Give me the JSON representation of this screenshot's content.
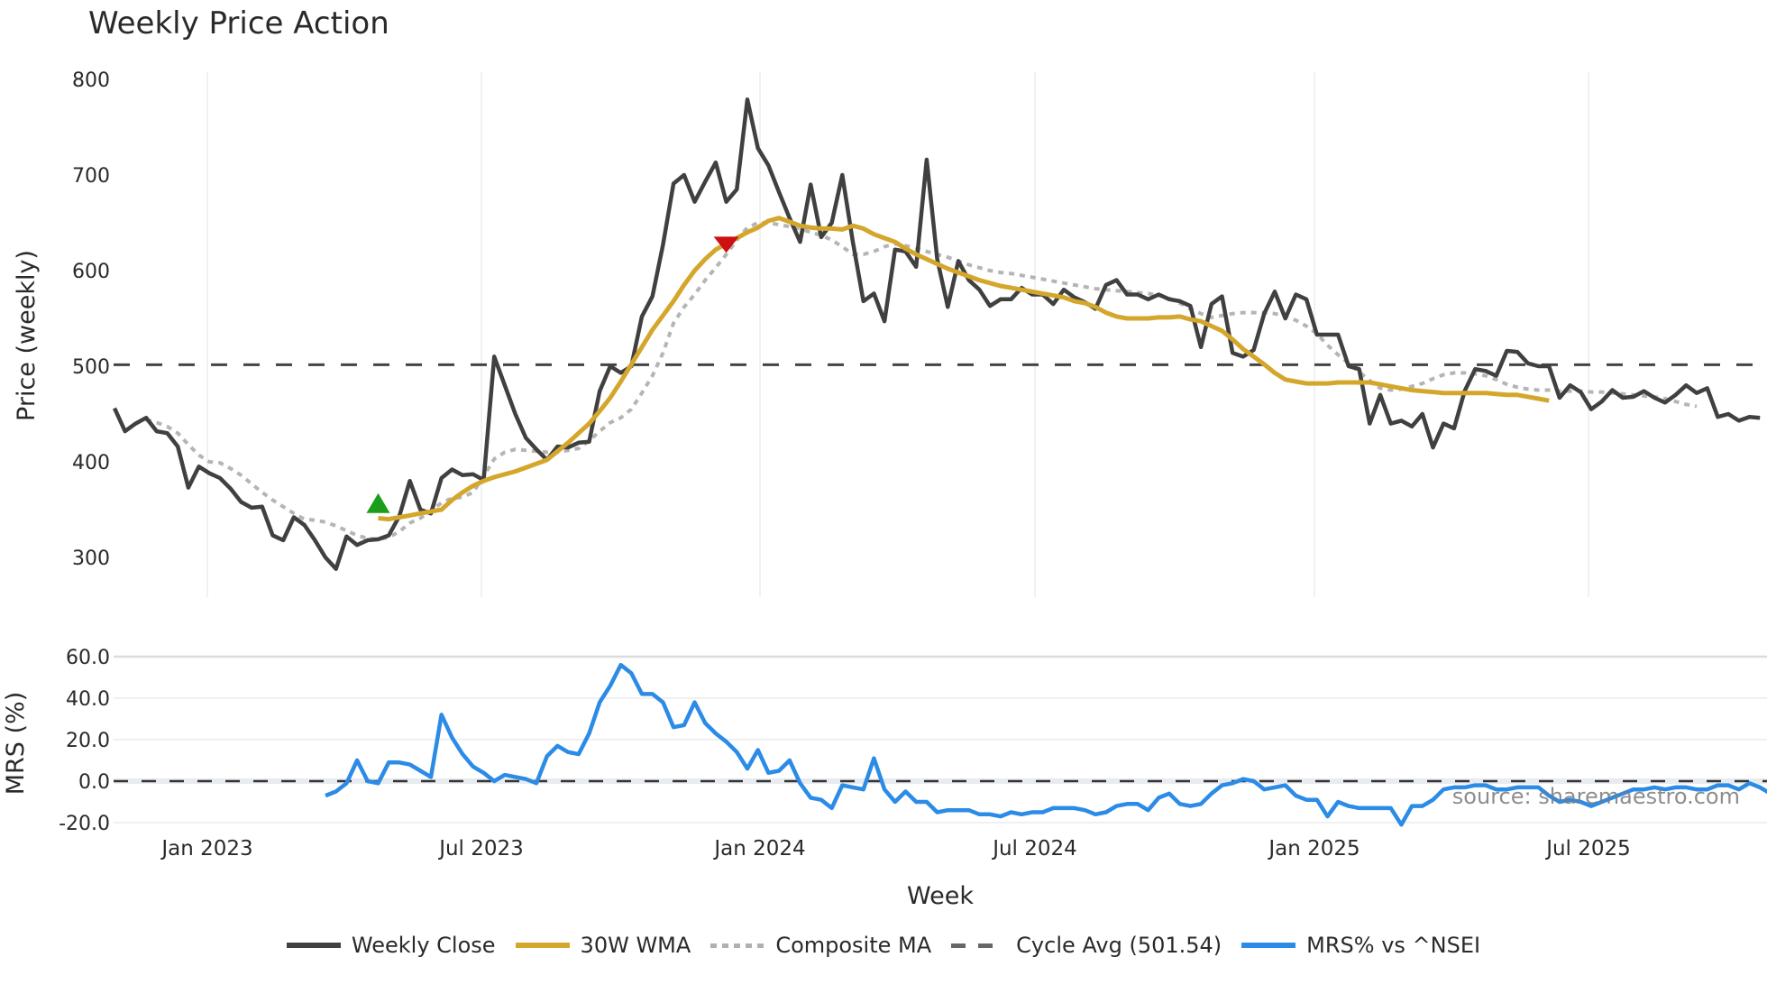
{
  "title": "Weekly Price Action",
  "source_text": "source: sharemaestro.com",
  "legend": [
    {
      "key": "close",
      "label": "Weekly Close",
      "color": "#404040"
    },
    {
      "key": "wma",
      "label": "30W WMA",
      "color": "#d4a72c"
    },
    {
      "key": "composite",
      "label": "Composite MA",
      "color": "#b0b0b0"
    },
    {
      "key": "cycle",
      "label": "Cycle Avg (501.54)",
      "color": "#555555"
    },
    {
      "key": "mrs",
      "label": "MRS% vs ^NSEI",
      "color": "#2b8be6"
    }
  ],
  "chart_data": [
    {
      "type": "line",
      "title": "Weekly Price Action",
      "xlabel": "Week",
      "ylabel": "Price (weekly)",
      "ylim": [
        255,
        810
      ],
      "yticks": [
        300,
        400,
        500,
        600,
        700,
        800
      ],
      "xticks": [
        "Jan 2023",
        "Jul 2023",
        "Jan 2024",
        "Jul 2024",
        "Jan 2025",
        "Jul 2025"
      ],
      "grid": "vertical",
      "cycle_avg": 501.54,
      "markers": [
        {
          "type": "buy",
          "shape": "triangle-up",
          "color": "#1a9e1a",
          "week": 25,
          "value": 355
        },
        {
          "type": "sell",
          "shape": "triangle-down",
          "color": "#cc1111",
          "week": 58,
          "value": 627
        }
      ],
      "series": [
        {
          "name": "Weekly Close",
          "start_week": 0,
          "values": [
            456,
            432,
            440,
            446,
            432,
            430,
            416,
            373,
            395,
            388,
            383,
            372,
            358,
            352,
            353,
            323,
            318,
            342,
            334,
            318,
            300,
            288,
            322,
            313,
            318,
            319,
            323,
            343,
            380,
            350,
            346,
            383,
            392,
            386,
            387,
            381,
            510,
            480,
            450,
            425,
            413,
            402,
            416,
            415,
            420,
            421,
            474,
            500,
            493,
            500,
            552,
            573,
            627,
            691,
            700,
            672,
            693,
            713,
            672,
            685,
            779,
            728,
            710,
            682,
            655,
            630,
            690,
            635,
            650,
            700,
            630,
            568,
            576,
            547,
            622,
            620,
            604,
            716,
            612,
            562,
            610,
            590,
            580,
            563,
            570,
            570,
            582,
            575,
            575,
            565,
            580,
            572,
            567,
            560,
            585,
            590,
            575,
            575,
            570,
            575,
            570,
            568,
            563,
            520,
            565,
            573,
            514,
            510,
            517,
            555,
            578,
            550,
            575,
            570,
            533,
            533,
            533,
            500,
            497,
            440,
            470,
            440,
            443,
            437,
            450,
            415,
            440,
            435,
            474,
            497,
            495,
            490,
            516,
            515,
            503,
            500,
            500,
            467,
            480,
            473,
            455,
            463,
            475,
            467,
            468,
            474,
            467,
            462,
            470,
            480,
            472,
            477,
            447,
            450,
            443,
            447,
            446
          ]
        },
        {
          "name": "30W WMA",
          "start_week": 25,
          "values": [
            341,
            340,
            342,
            344,
            346,
            348,
            350,
            360,
            368,
            375,
            380,
            384,
            387,
            390,
            394,
            398,
            402,
            411,
            420,
            430,
            440,
            453,
            467,
            484,
            502,
            520,
            538,
            553,
            568,
            585,
            600,
            612,
            622,
            628,
            634,
            640,
            645,
            652,
            655,
            651,
            647,
            645,
            644,
            644,
            643,
            647,
            644,
            638,
            634,
            630,
            623,
            617,
            612,
            607,
            602,
            598,
            594,
            590,
            587,
            584,
            582,
            580,
            578,
            576,
            574,
            572,
            568,
            566,
            562,
            556,
            552,
            550,
            550,
            550,
            551,
            551,
            552,
            549,
            547,
            542,
            537,
            528,
            518,
            510,
            502,
            493,
            486,
            484,
            482,
            482,
            482,
            483,
            483,
            483,
            483,
            481,
            479,
            477,
            475,
            474,
            473,
            472,
            472,
            472,
            472,
            472,
            471,
            470,
            470,
            468,
            466,
            464
          ]
        },
        {
          "name": "Composite MA",
          "start_week": 3,
          "values": [
            444,
            441,
            437,
            430,
            418,
            407,
            400,
            399,
            393,
            386,
            377,
            368,
            360,
            353,
            346,
            340,
            339,
            337,
            333,
            328,
            323,
            320,
            319,
            321,
            327,
            336,
            341,
            349,
            357,
            362,
            363,
            368,
            385,
            403,
            410,
            413,
            412,
            411,
            410,
            410,
            412,
            414,
            422,
            432,
            441,
            446,
            455,
            472,
            490,
            514,
            545,
            562,
            575,
            590,
            603,
            617,
            632,
            645,
            650,
            650,
            648,
            646,
            644,
            640,
            637,
            632,
            625,
            617,
            617,
            620,
            625,
            628,
            626,
            623,
            620,
            617,
            614,
            610,
            606,
            603,
            600,
            598,
            597,
            595,
            593,
            591,
            589,
            587,
            585,
            583,
            581,
            580,
            579,
            578,
            577,
            576,
            574,
            571,
            566,
            560,
            555,
            551,
            553,
            555,
            556,
            556,
            556,
            555,
            552,
            548,
            542,
            534,
            522,
            512,
            503,
            494,
            485,
            477,
            475,
            476,
            479,
            482,
            487,
            491,
            493,
            493,
            492,
            490,
            486,
            481,
            478,
            476,
            475,
            475,
            474,
            474,
            474,
            473,
            473,
            472,
            471,
            470,
            469,
            468,
            466,
            463,
            460,
            458
          ]
        },
        {
          "name": "Cycle Avg",
          "constant": 501.54
        }
      ]
    },
    {
      "type": "line",
      "title": "",
      "xlabel": "Week",
      "ylabel": "MRS (%)",
      "ylim": [
        -23,
        62
      ],
      "yticks": [
        -20.0,
        0.0,
        20.0,
        40.0,
        60.0
      ],
      "xticks": [
        "Jan 2023",
        "Jul 2023",
        "Jan 2024",
        "Jul 2024",
        "Jan 2025",
        "Jul 2025"
      ],
      "grid": "horizontal",
      "zero_line": 0,
      "series": [
        {
          "name": "MRS% vs ^NSEI",
          "start_week": 20,
          "values": [
            -7,
            -5,
            -1,
            10,
            0,
            -1,
            9,
            9,
            8,
            5,
            2,
            32,
            21,
            13,
            7,
            4,
            0,
            3,
            2,
            1,
            -1,
            12,
            17,
            14,
            13,
            23,
            38,
            46,
            56,
            52,
            42,
            42,
            38,
            26,
            27,
            38,
            28,
            23,
            19,
            14,
            6,
            15,
            4,
            5,
            10,
            -1,
            -8,
            -9,
            -13,
            -2,
            -3,
            -4,
            11,
            -4,
            -10,
            -5,
            -10,
            -10,
            -15,
            -14,
            -14,
            -14,
            -16,
            -16,
            -17,
            -15,
            -16,
            -15,
            -15,
            -13,
            -13,
            -13,
            -14,
            -16,
            -15,
            -12,
            -11,
            -11,
            -14,
            -8,
            -6,
            -11,
            -12,
            -11,
            -6,
            -2,
            -1,
            1,
            0,
            -4,
            -3,
            -2,
            -7,
            -9,
            -9,
            -17,
            -10,
            -12,
            -13,
            -13,
            -13,
            -13,
            -21,
            -12,
            -12,
            -9,
            -4,
            -3,
            -3,
            -2,
            -2,
            -4,
            -4,
            -3,
            -3,
            -3,
            -7,
            -10,
            -9,
            -10,
            -12,
            -10,
            -8,
            -6,
            -4,
            -4,
            -3,
            -4,
            -3,
            -3,
            -4,
            -4,
            -2,
            -2,
            -4,
            -1,
            -3,
            -6,
            -9,
            -8,
            -11,
            -10
          ]
        }
      ]
    }
  ]
}
